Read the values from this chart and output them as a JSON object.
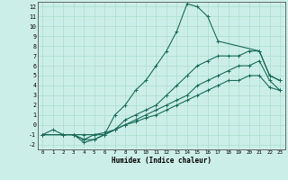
{
  "xlabel": "Humidex (Indice chaleur)",
  "bg_color": "#cceee8",
  "line_color": "#1a6b5a",
  "grid_color": "#aaddcc",
  "xlim": [
    -0.5,
    23.5
  ],
  "ylim": [
    -2.5,
    12.5
  ],
  "xticks": [
    0,
    1,
    2,
    3,
    4,
    5,
    6,
    7,
    8,
    9,
    10,
    11,
    12,
    13,
    14,
    15,
    16,
    17,
    18,
    19,
    20,
    21,
    22,
    23
  ],
  "yticks": [
    -2,
    -1,
    0,
    1,
    2,
    3,
    4,
    5,
    6,
    7,
    8,
    9,
    10,
    11,
    12
  ],
  "lines": [
    {
      "x": [
        0,
        1,
        2,
        3,
        4,
        5,
        6,
        7,
        8,
        9,
        10,
        11,
        12,
        13,
        14,
        15,
        16,
        17,
        21,
        22,
        23
      ],
      "y": [
        -1,
        -0.5,
        -1,
        -1,
        -1.5,
        -1,
        -1,
        1,
        2,
        3.5,
        4.5,
        6,
        7.5,
        9.5,
        12.3,
        12,
        11,
        8.5,
        7.5,
        5,
        4.5
      ]
    },
    {
      "x": [
        0,
        2,
        3,
        4,
        5,
        6,
        7,
        8,
        9,
        10,
        11,
        12,
        13,
        14,
        15,
        16,
        17,
        18,
        19,
        20,
        21,
        22,
        23
      ],
      "y": [
        -1,
        -1,
        -1,
        -1.5,
        -1.5,
        -1,
        -0.5,
        0.5,
        1,
        1.5,
        2,
        3,
        4,
        5,
        6,
        6.5,
        7,
        7,
        7,
        7.5,
        7.5,
        5,
        4.5
      ]
    },
    {
      "x": [
        0,
        2,
        3,
        4,
        5,
        6,
        7,
        8,
        9,
        10,
        11,
        12,
        13,
        14,
        15,
        16,
        17,
        18,
        19,
        20,
        21,
        22,
        23
      ],
      "y": [
        -1,
        -1,
        -1,
        -1.8,
        -1.5,
        -1,
        -0.5,
        0,
        0.5,
        1,
        1.5,
        2,
        2.5,
        3,
        4,
        4.5,
        5,
        5.5,
        6,
        6,
        6.5,
        4.5,
        3.5
      ]
    },
    {
      "x": [
        0,
        2,
        3,
        4,
        5,
        6,
        7,
        8,
        9,
        10,
        11,
        12,
        13,
        14,
        15,
        16,
        17,
        18,
        19,
        20,
        21,
        22,
        23
      ],
      "y": [
        -1,
        -1,
        -1,
        -1,
        -1,
        -0.8,
        -0.5,
        0,
        0.3,
        0.7,
        1,
        1.5,
        2,
        2.5,
        3,
        3.5,
        4,
        4.5,
        4.5,
        5,
        5,
        3.8,
        3.5
      ]
    }
  ]
}
